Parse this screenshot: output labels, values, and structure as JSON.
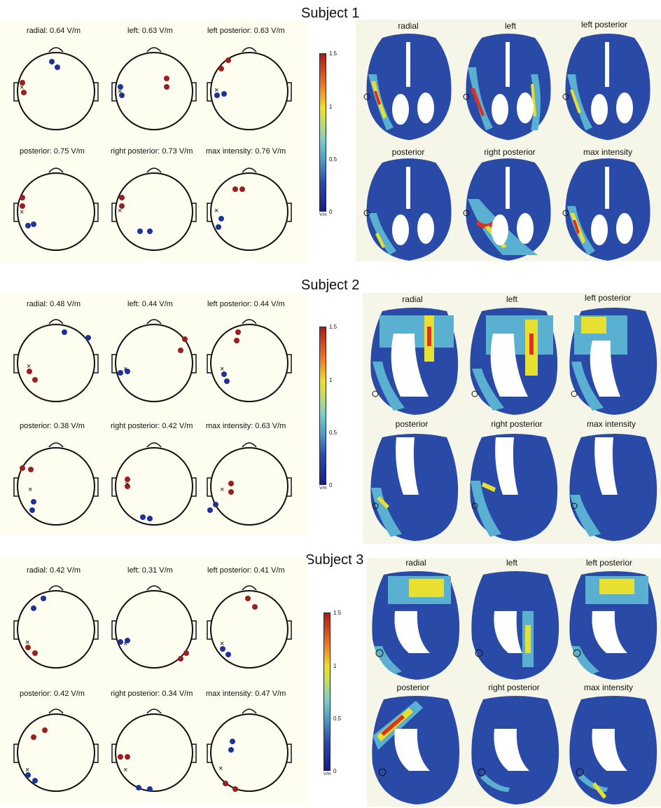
{
  "subjects": [
    {
      "title": "Subject 1",
      "topo": [
        {
          "label": "radial: 0.64 V/m"
        },
        {
          "label": "left: 0.63 V/m"
        },
        {
          "label": "left posterior: 0.63 V/m"
        },
        {
          "label": "posterior: 0.75 V/m"
        },
        {
          "label": "right posterior: 0.73 V/m"
        },
        {
          "label": "max intensity: 0.76 V/m"
        }
      ],
      "colorbar": {
        "ticks": [
          "1.5",
          "1",
          "0.5",
          "0"
        ],
        "unit": "V/m"
      },
      "brains": [
        "radial",
        "left",
        "left posterior",
        "posterior",
        "right posterior",
        "max intensity"
      ]
    },
    {
      "title": "Subject 2",
      "topo": [
        {
          "label": "radial: 0.48 V/m"
        },
        {
          "label": "left: 0.44 V/m"
        },
        {
          "label": "left posterior: 0.44 V/m"
        },
        {
          "label": "posterior: 0.38 V/m"
        },
        {
          "label": "right posterior: 0.42 V/m"
        },
        {
          "label": "max intensity: 0.63 V/m"
        }
      ],
      "colorbar": {
        "ticks": [
          "1.5",
          "1",
          "0.5",
          "0"
        ],
        "unit": "V/m"
      },
      "brains": [
        "radial",
        "left",
        "left posterior",
        "posterior",
        "right posterior",
        "max intensity"
      ]
    },
    {
      "title": "Subject 3",
      "topo": [
        {
          "label": "radial: 0.42 V/m"
        },
        {
          "label": "left: 0.31 V/m"
        },
        {
          "label": "left posterior: 0.41 V/m"
        },
        {
          "label": "posterior: 0.42 V/m"
        },
        {
          "label": "right posterior: 0.34 V/m"
        },
        {
          "label": "max intensity: 0.47 V/m"
        }
      ],
      "colorbar": {
        "ticks": [
          "1.5",
          "1",
          "0.5",
          "0"
        ],
        "unit": "V/m"
      },
      "brains": [
        "radial",
        "left",
        "left posterior",
        "posterior",
        "right posterior",
        "max intensity"
      ]
    }
  ],
  "colors": {
    "red_electrode": "#9c1f1f",
    "blue_electrode": "#1e3399",
    "panel_background": "#fdfdf0",
    "brain_dark": "#2a4aa8",
    "brain_mid": "#5ab0d0",
    "brain_hot": "#e03020",
    "brain_warm": "#e8e030"
  }
}
